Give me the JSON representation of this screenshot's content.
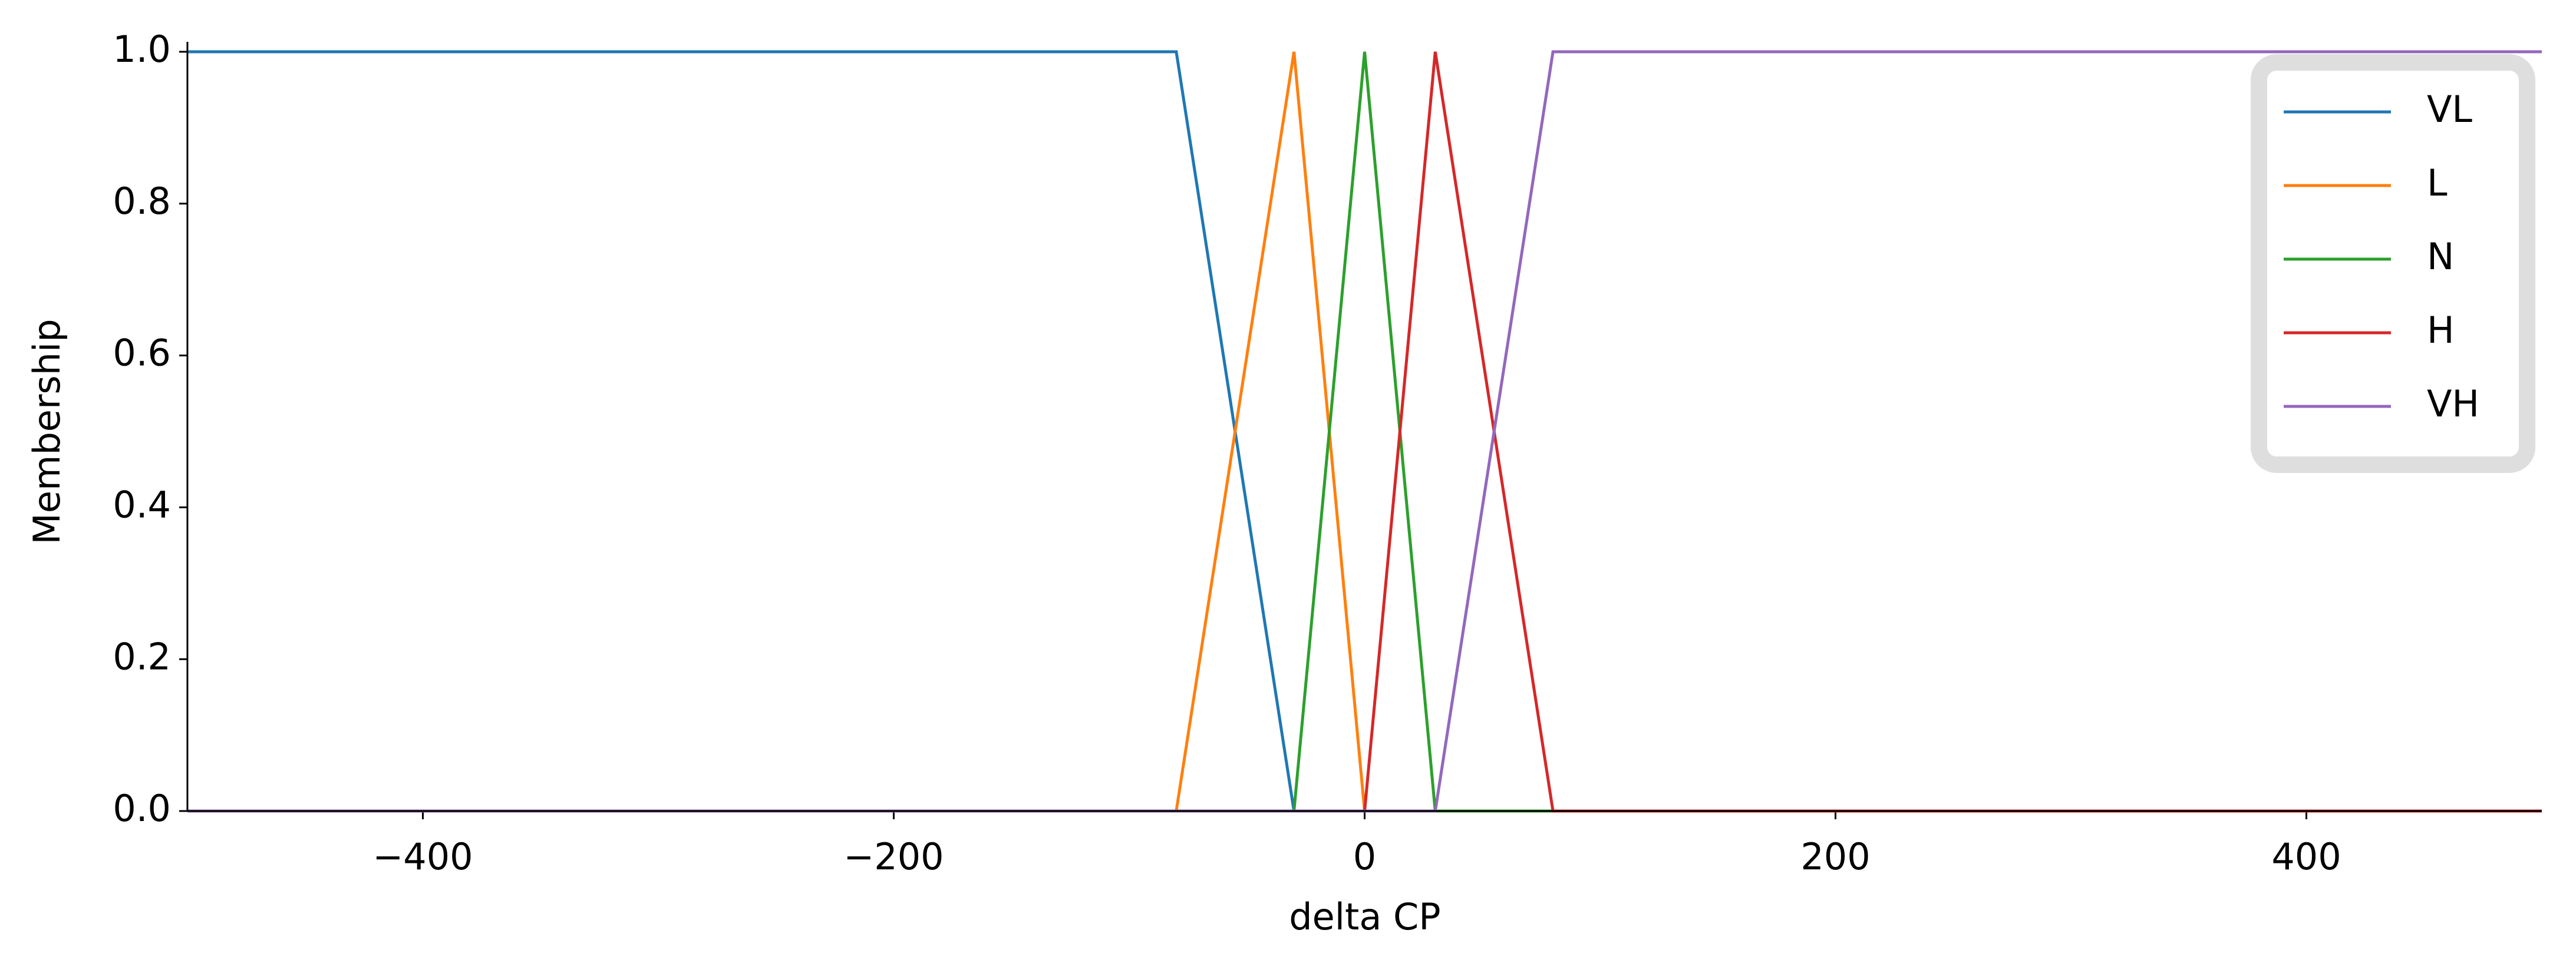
{
  "chart_data": {
    "type": "line",
    "xlabel": "delta CP",
    "ylabel": "Membership",
    "xlim": [
      -500,
      500
    ],
    "ylim": [
      0,
      1.01
    ],
    "xticks": [
      {
        "value": -400,
        "label": "−400"
      },
      {
        "value": -200,
        "label": "−200"
      },
      0,
      200,
      400
    ],
    "yticks": [
      {
        "value": 0,
        "label": "0.0"
      },
      {
        "value": 0.2,
        "label": "0.2"
      },
      {
        "value": 0.4,
        "label": "0.4"
      },
      {
        "value": 0.6,
        "label": "0.6"
      },
      {
        "value": 0.8,
        "label": "0.8"
      },
      {
        "value": 1,
        "label": "1.0"
      }
    ],
    "legend": "upper right",
    "series": [
      {
        "name": "VL",
        "color": "#1f77b4",
        "x": [
          -500,
          -80,
          -30,
          500
        ],
        "values": [
          1,
          1,
          0,
          0
        ]
      },
      {
        "name": "L",
        "color": "#ff7f0e",
        "x": [
          -500,
          -80,
          -30,
          0,
          500
        ],
        "values": [
          0,
          0,
          1,
          0,
          0
        ]
      },
      {
        "name": "N",
        "color": "#2ca02c",
        "x": [
          -500,
          -30,
          0,
          30,
          500
        ],
        "values": [
          0,
          0,
          1,
          0,
          0
        ]
      },
      {
        "name": "H",
        "color": "#d62728",
        "x": [
          -500,
          0,
          30,
          80,
          500
        ],
        "values": [
          0,
          0,
          1,
          0,
          0
        ]
      },
      {
        "name": "VH",
        "color": "#9467bd",
        "x": [
          -500,
          30,
          80,
          500
        ],
        "values": [
          0,
          0,
          1,
          1
        ]
      }
    ]
  }
}
